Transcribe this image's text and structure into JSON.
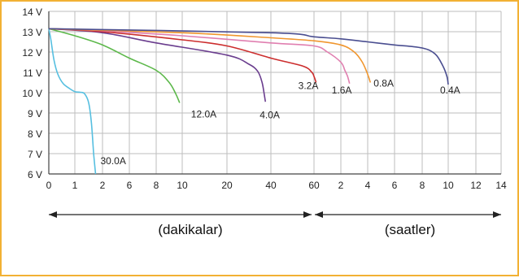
{
  "chart_data": {
    "type": "line",
    "title": "",
    "xlabel": "",
    "ylabel": "",
    "ylim": [
      6,
      14
    ],
    "y_ticks": [
      "6 V",
      "7 V",
      "8 V",
      "9 V",
      "10 V",
      "11 V",
      "12 V",
      "13 V",
      "14 V"
    ],
    "x_ticks": [
      "0",
      "1",
      "2",
      "6",
      "8",
      "10",
      "20",
      "40",
      "60",
      "2",
      "4",
      "6",
      "8",
      "10",
      "12",
      "14"
    ],
    "x_segments": [
      {
        "label": "(dakikalar)",
        "unit": "minutes",
        "breaks": [
          0,
          1,
          2,
          6,
          8,
          10,
          20,
          40,
          60
        ]
      },
      {
        "label": "(saatler)",
        "unit": "hours",
        "breaks": [
          1,
          2,
          4,
          6,
          8,
          10,
          12,
          14
        ]
      }
    ],
    "series": [
      {
        "name": "30.0A",
        "color": "#56bfe0",
        "unit": "minutes",
        "points": [
          [
            0,
            13.15
          ],
          [
            0.08,
            12.6
          ],
          [
            0.2,
            11.6
          ],
          [
            0.35,
            10.9
          ],
          [
            0.55,
            10.45
          ],
          [
            0.8,
            10.2
          ],
          [
            1.0,
            10.05
          ],
          [
            1.2,
            10.02
          ],
          [
            1.35,
            9.95
          ],
          [
            1.5,
            9.5
          ],
          [
            1.6,
            8.5
          ],
          [
            1.68,
            7.0
          ],
          [
            1.75,
            6.0
          ]
        ]
      },
      {
        "name": "12.0A",
        "color": "#5cb84a",
        "unit": "minutes",
        "points": [
          [
            0,
            13.15
          ],
          [
            1,
            12.8
          ],
          [
            2,
            12.35
          ],
          [
            6,
            11.7
          ],
          [
            8,
            11.1
          ],
          [
            9,
            10.5
          ],
          [
            9.5,
            9.95
          ],
          [
            9.8,
            9.5
          ]
        ]
      },
      {
        "name": "4.0A",
        "color": "#6a3d8e",
        "unit": "minutes",
        "points": [
          [
            0,
            13.15
          ],
          [
            2,
            12.95
          ],
          [
            8,
            12.45
          ],
          [
            20,
            11.85
          ],
          [
            30,
            11.4
          ],
          [
            34,
            11.05
          ],
          [
            36,
            10.5
          ],
          [
            37,
            9.9
          ],
          [
            37.5,
            9.55
          ]
        ]
      },
      {
        "name": "3.2A",
        "color": "#cc2d2d",
        "unit": "minutes",
        "points": [
          [
            0,
            13.15
          ],
          [
            2,
            13.0
          ],
          [
            10,
            12.6
          ],
          [
            20,
            12.3
          ],
          [
            40,
            11.7
          ],
          [
            55,
            11.3
          ],
          [
            59,
            11.0
          ],
          [
            60,
            10.8
          ],
          [
            61,
            10.5
          ]
        ]
      },
      {
        "name": "1.6A",
        "color": "#e07fb0",
        "unit": "hours",
        "points": [
          [
            0,
            13.15
          ],
          [
            0.0333,
            13.05
          ],
          [
            0.1667,
            12.8
          ],
          [
            0.6667,
            12.45
          ],
          [
            1.0,
            12.3
          ],
          [
            1.5,
            12.0
          ],
          [
            2.0,
            11.5
          ],
          [
            2.3,
            11.1
          ],
          [
            2.5,
            10.8
          ],
          [
            2.65,
            10.45
          ]
        ]
      },
      {
        "name": "0.8A",
        "color": "#f0962e",
        "unit": "hours",
        "points": [
          [
            0,
            13.15
          ],
          [
            0.1667,
            12.95
          ],
          [
            0.6667,
            12.7
          ],
          [
            1.0,
            12.55
          ],
          [
            2.0,
            12.35
          ],
          [
            3.0,
            12.0
          ],
          [
            3.6,
            11.5
          ],
          [
            4.0,
            10.9
          ],
          [
            4.2,
            10.5
          ]
        ]
      },
      {
        "name": "0.4A",
        "color": "#4a4e90",
        "unit": "hours",
        "points": [
          [
            0,
            13.15
          ],
          [
            0.6667,
            12.95
          ],
          [
            1.0,
            12.75
          ],
          [
            2.0,
            12.65
          ],
          [
            4.0,
            12.5
          ],
          [
            6.0,
            12.35
          ],
          [
            8.0,
            12.2
          ],
          [
            9.0,
            11.9
          ],
          [
            9.6,
            11.3
          ],
          [
            9.9,
            10.8
          ],
          [
            10.0,
            10.4
          ]
        ]
      }
    ],
    "grid": true,
    "legend": "none",
    "colors": {
      "axis": "#444444",
      "grid": "#bdbdbd",
      "border": "#f2b134",
      "arrow": "#222222"
    }
  }
}
